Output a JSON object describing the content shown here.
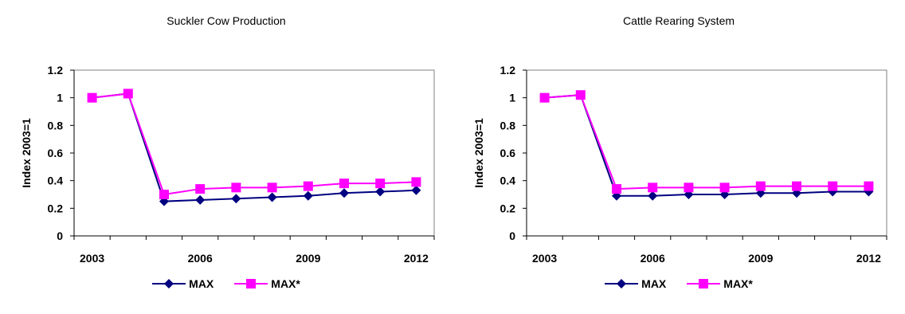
{
  "chart_data": [
    {
      "type": "line",
      "title": "Suckler Cow Production",
      "ylabel": "Index 2003=1",
      "xlabel": "",
      "ylim": [
        0,
        1.2
      ],
      "yticks": [
        "0",
        "0.2",
        "0.4",
        "0.6",
        "0.8",
        "1",
        "1.2"
      ],
      "x": [
        2003,
        2004,
        2005,
        2006,
        2007,
        2008,
        2009,
        2010,
        2011,
        2012
      ],
      "xticklabels": [
        "2003",
        "2006",
        "2009",
        "2012"
      ],
      "grid": false,
      "legend_position": "bottom",
      "series": [
        {
          "name": "MAX",
          "color": "#000080",
          "marker": "diamond",
          "values": [
            1.0,
            1.03,
            0.25,
            0.26,
            0.27,
            0.28,
            0.29,
            0.31,
            0.32,
            0.33
          ]
        },
        {
          "name": "MAX*",
          "color": "#FF00FF",
          "marker": "square",
          "values": [
            1.0,
            1.03,
            0.3,
            0.34,
            0.35,
            0.35,
            0.36,
            0.38,
            0.38,
            0.39
          ]
        }
      ]
    },
    {
      "type": "line",
      "title": "Cattle Rearing System",
      "ylabel": "Index 2003=1",
      "xlabel": "",
      "ylim": [
        0,
        1.2
      ],
      "yticks": [
        "0",
        "0.2",
        "0.4",
        "0.6",
        "0.8",
        "1",
        "1.2"
      ],
      "x": [
        2003,
        2004,
        2005,
        2006,
        2007,
        2008,
        2009,
        2010,
        2011,
        2012
      ],
      "xticklabels": [
        "2003",
        "2006",
        "2009",
        "2012"
      ],
      "grid": false,
      "legend_position": "bottom",
      "series": [
        {
          "name": "MAX",
          "color": "#000080",
          "marker": "diamond",
          "values": [
            1.0,
            1.02,
            0.29,
            0.29,
            0.3,
            0.3,
            0.31,
            0.31,
            0.32,
            0.32
          ]
        },
        {
          "name": "MAX*",
          "color": "#FF00FF",
          "marker": "square",
          "values": [
            1.0,
            1.02,
            0.34,
            0.35,
            0.35,
            0.35,
            0.36,
            0.36,
            0.36,
            0.36
          ]
        }
      ]
    }
  ]
}
